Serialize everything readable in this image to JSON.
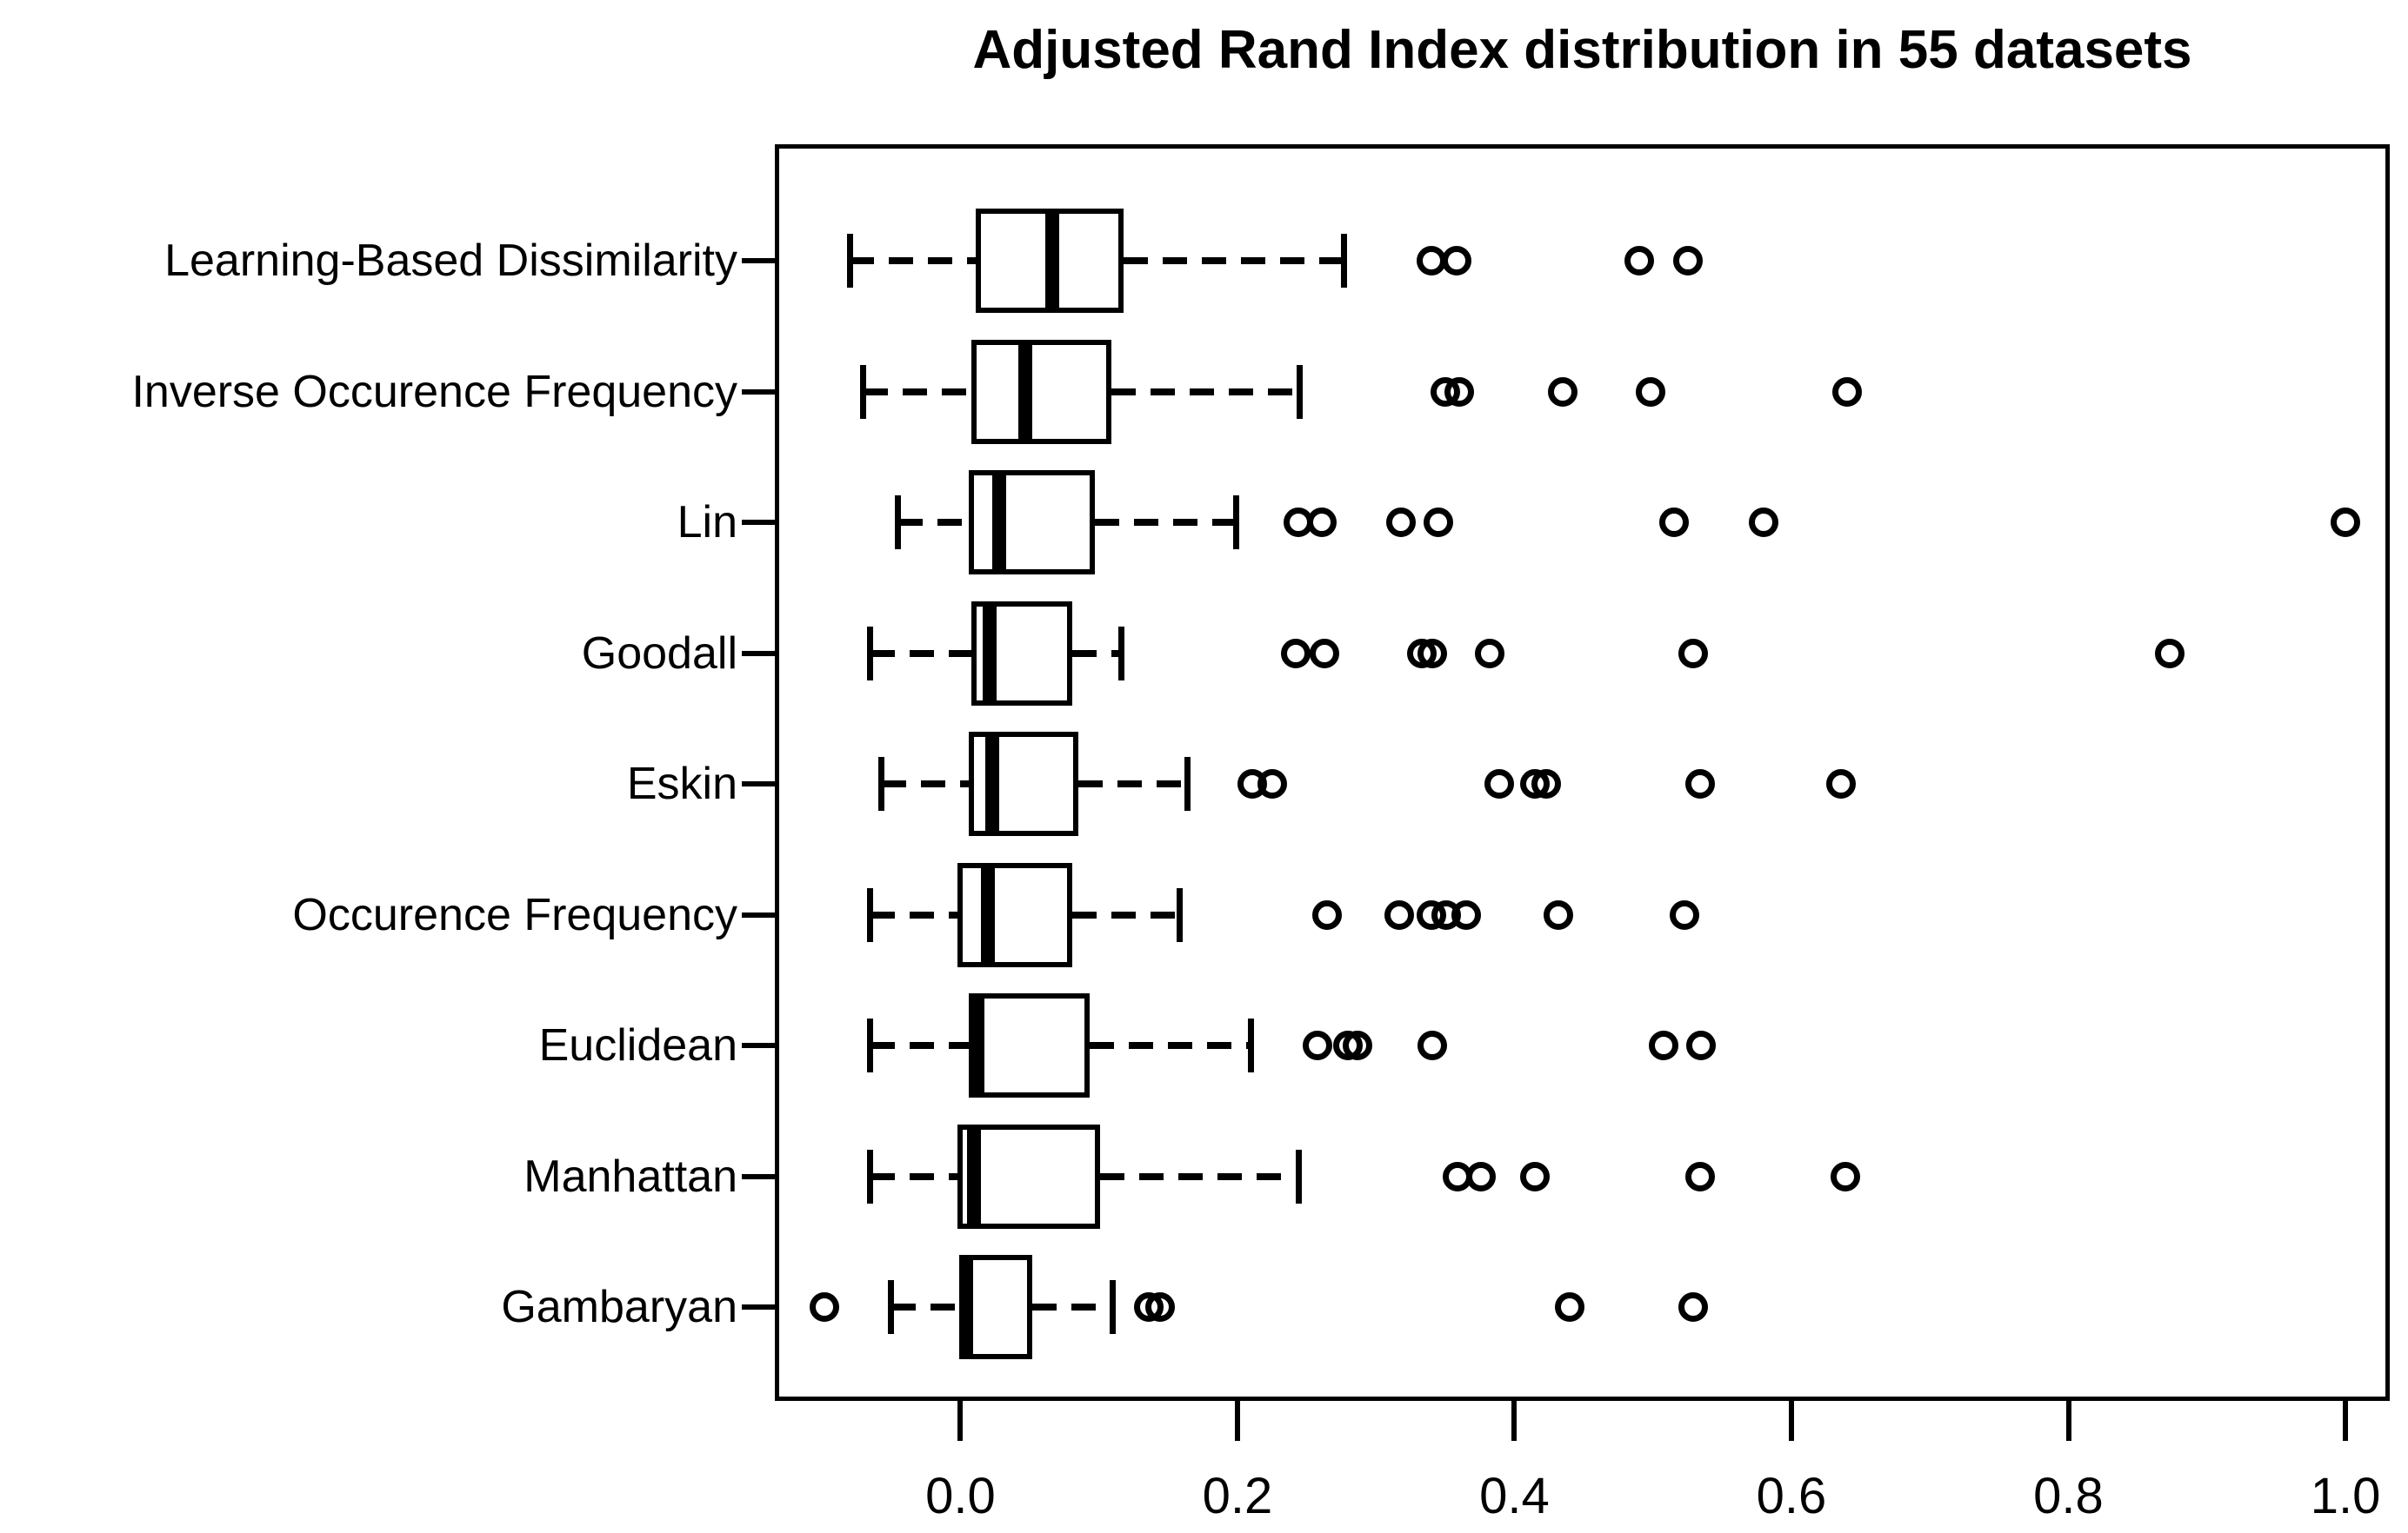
{
  "colors": {
    "foreground": "#000000",
    "background": "#ffffff"
  },
  "chart_data": {
    "type": "boxplot",
    "orientation": "horizontal",
    "title": "Adjusted Rand Index distribution in 55 datasets",
    "xlabel": "",
    "ylabel": "",
    "grid": false,
    "legend": false,
    "xlim": [
      -0.134,
      1.032
    ],
    "x_ticks": [
      0.0,
      0.2,
      0.4,
      0.6,
      0.8,
      1.0
    ],
    "x_tick_labels": [
      "0.0",
      "0.2",
      "0.4",
      "0.6",
      "0.8",
      "1.0"
    ],
    "categories": [
      "Learning-Based Dissimilarity",
      "Inverse Occurence Frequency",
      "Lin",
      "Goodall",
      "Eskin",
      "Occurence Frequency",
      "Euclidean",
      "Manhattan",
      "Gambaryan"
    ],
    "series": [
      {
        "name": "Learning-Based Dissimilarity",
        "whisker_low": -0.08,
        "q1": 0.011,
        "median": 0.066,
        "q3": 0.118,
        "whisker_high": 0.277,
        "outliers": [
          0.34,
          0.358,
          0.49,
          0.525
        ]
      },
      {
        "name": "Inverse Occurence Frequency",
        "whisker_low": -0.07,
        "q1": 0.008,
        "median": 0.047,
        "q3": 0.109,
        "whisker_high": 0.245,
        "outliers": [
          0.35,
          0.36,
          0.435,
          0.498,
          0.64
        ]
      },
      {
        "name": "Lin",
        "whisker_low": -0.045,
        "q1": 0.006,
        "median": 0.028,
        "q3": 0.097,
        "whisker_high": 0.199,
        "outliers": [
          0.244,
          0.261,
          0.318,
          0.345,
          0.515,
          0.58,
          1.0
        ]
      },
      {
        "name": "Goodall",
        "whisker_low": -0.065,
        "q1": 0.008,
        "median": 0.021,
        "q3": 0.081,
        "whisker_high": 0.116,
        "outliers": [
          0.242,
          0.263,
          0.333,
          0.341,
          0.382,
          0.529,
          0.873
        ]
      },
      {
        "name": "Eskin",
        "whisker_low": -0.057,
        "q1": 0.006,
        "median": 0.023,
        "q3": 0.085,
        "whisker_high": 0.164,
        "outliers": [
          0.211,
          0.225,
          0.389,
          0.415,
          0.423,
          0.534,
          0.636
        ]
      },
      {
        "name": "Occurence Frequency",
        "whisker_low": -0.065,
        "q1": -0.002,
        "median": 0.02,
        "q3": 0.081,
        "whisker_high": 0.158,
        "outliers": [
          0.265,
          0.317,
          0.34,
          0.351,
          0.365,
          0.432,
          0.523
        ]
      },
      {
        "name": "Euclidean",
        "whisker_low": -0.065,
        "q1": 0.006,
        "median": 0.012,
        "q3": 0.093,
        "whisker_high": 0.21,
        "outliers": [
          0.258,
          0.28,
          0.287,
          0.341,
          0.508,
          0.535
        ]
      },
      {
        "name": "Manhattan",
        "whisker_low": -0.065,
        "q1": -0.002,
        "median": 0.01,
        "q3": 0.101,
        "whisker_high": 0.244,
        "outliers": [
          0.359,
          0.376,
          0.415,
          0.534,
          0.639
        ]
      },
      {
        "name": "Gambaryan",
        "whisker_low": -0.05,
        "q1": 0.0,
        "median": 0.004,
        "q3": 0.052,
        "whisker_high": 0.11,
        "outliers": [
          -0.098,
          0.136,
          0.144,
          0.44,
          0.529
        ]
      }
    ]
  }
}
